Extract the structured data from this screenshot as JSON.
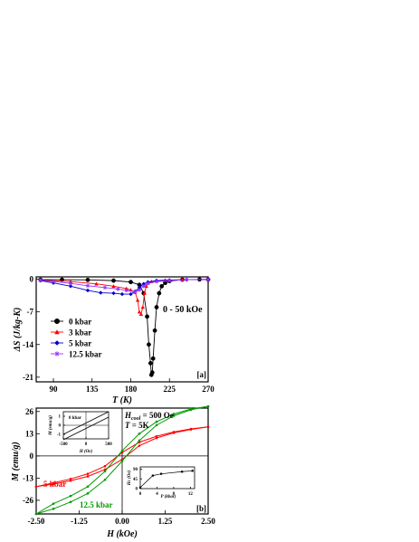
{
  "panel_a": {
    "ylabel": "ΔS (J/kg-K)",
    "xlabel": "T (K)",
    "field_label": "0 - 50 kOe",
    "panel_tag": "[a]",
    "legend": [
      {
        "label": "0 kbar",
        "color": "#000000",
        "marker": "circle"
      },
      {
        "label": "3 kbar",
        "color": "#ff0000",
        "marker": "triangle"
      },
      {
        "label": "5 kbar",
        "color": "#0000cc",
        "marker": "diamond"
      },
      {
        "label": "12.5 kbar",
        "color": "#9933ff",
        "marker": "star"
      }
    ]
  },
  "panel_b": {
    "ylabel": "M (emu/g)",
    "xlabel": "H (kOe)",
    "hcool_label": "H",
    "hcool_sub": "cool",
    "hcool_value": " = 500 Oe",
    "temp_label": "T",
    "temp_value": " = 5K",
    "panel_tag": "[b]",
    "label_5kbar": "5 kbar",
    "label_125kbar": "12.5 kbar",
    "inset_left": {
      "text": "0 kbar",
      "xlabel": "H (Oe)",
      "ylabel": "M (emu/g)"
    },
    "inset_right": {
      "xlabel": "P (kbar)",
      "ylabel": "Hc (Oe)"
    }
  },
  "chart_data": [
    {
      "type": "line",
      "xlabel": "T (K)",
      "ylabel": "ΔS (J/kg-K)",
      "xlim": [
        70,
        270
      ],
      "ylim": [
        -22,
        0.5
      ],
      "xticks": [
        90,
        135,
        180,
        225,
        270
      ],
      "yticks": [
        0,
        -7,
        -14,
        -21
      ],
      "series": [
        {
          "name": "0 kbar",
          "color": "#000000",
          "x": [
            75,
            100,
            130,
            160,
            180,
            190,
            195,
            199,
            201,
            203,
            204,
            205,
            206,
            208,
            210,
            213,
            216,
            220,
            225,
            240,
            260,
            270
          ],
          "y": [
            -0.1,
            -0.1,
            -0.15,
            -0.3,
            -0.6,
            -1.2,
            -3,
            -8,
            -14,
            -18,
            -20.5,
            -20,
            -17,
            -11,
            -6,
            -3,
            -1.5,
            -0.8,
            -0.4,
            -0.1,
            -0.05,
            -0.05
          ]
        },
        {
          "name": "3 kbar",
          "color": "#ff0000",
          "x": [
            75,
            110,
            140,
            160,
            175,
            180,
            185,
            188,
            190,
            192,
            194,
            196,
            198,
            200,
            204,
            210,
            220,
            240,
            270
          ],
          "y": [
            -0.2,
            -0.5,
            -1.0,
            -1.5,
            -2.0,
            -2.3,
            -2.8,
            -4.5,
            -7.0,
            -7.5,
            -6.0,
            -3.0,
            -1.5,
            -0.8,
            -0.5,
            -0.3,
            -0.2,
            -0.1,
            -0.05
          ]
        },
        {
          "name": "5 kbar",
          "color": "#0000cc",
          "x": [
            75,
            90,
            110,
            130,
            145,
            160,
            170,
            180,
            185,
            190,
            195,
            200,
            210,
            225,
            245,
            270
          ],
          "y": [
            -0.3,
            -0.8,
            -1.5,
            -2.4,
            -2.9,
            -3.0,
            -3.2,
            -3.2,
            -2.6,
            -1.8,
            -1.0,
            -0.6,
            -0.3,
            -0.2,
            -0.1,
            -0.05
          ]
        },
        {
          "name": "12.5 kbar",
          "color": "#9933ff",
          "x": [
            75,
            90,
            110,
            130,
            150,
            165,
            175,
            185,
            190,
            195,
            200,
            210,
            225,
            245,
            270
          ],
          "y": [
            -0.2,
            -0.5,
            -0.9,
            -1.4,
            -1.8,
            -2.1,
            -2.4,
            -2.7,
            -2.3,
            -1.5,
            -0.9,
            -0.5,
            -0.3,
            -0.1,
            -0.05
          ]
        }
      ]
    },
    {
      "type": "line",
      "xlabel": "H (kOe)",
      "ylabel": "M (emu/g)",
      "xlim": [
        -2.5,
        2.5
      ],
      "ylim": [
        -34,
        28
      ],
      "xticks": [
        -2.5,
        -1.25,
        0.0,
        1.25,
        2.5
      ],
      "xtick_labels": [
        "-2.50",
        "-1.25",
        "0.00",
        "1.25",
        "2.50"
      ],
      "yticks": [
        26,
        13,
        0,
        -13,
        -26
      ],
      "series": [
        {
          "name": "5 kbar",
          "color": "#ff0000",
          "x": [
            -2.5,
            -2.0,
            -1.5,
            -1.0,
            -0.5,
            0.0,
            0.5,
            1.0,
            1.5,
            2.0,
            2.5
          ],
          "y": [
            -18,
            -16.5,
            -14.5,
            -12,
            -8,
            -2,
            6,
            10.5,
            13.5,
            15.5,
            17
          ]
        },
        {
          "name": "5 kbar return",
          "color": "#ff0000",
          "x": [
            2.5,
            2.0,
            1.5,
            1.0,
            0.5,
            0.0,
            -0.5,
            -1.0,
            -1.5,
            -2.0,
            -2.5
          ],
          "y": [
            17,
            15.8,
            14,
            11.5,
            8,
            2,
            -6,
            -10.5,
            -13.5,
            -15.8,
            -18
          ]
        },
        {
          "name": "12.5 kbar",
          "color": "#009900",
          "x": [
            -2.5,
            -2.0,
            -1.5,
            -1.0,
            -0.5,
            0.0,
            0.5,
            1.0,
            1.5,
            2.0,
            2.5
          ],
          "y": [
            -34,
            -31,
            -27,
            -22,
            -14,
            -3,
            9,
            18,
            23.5,
            27,
            29
          ]
        },
        {
          "name": "12.5 kbar return",
          "color": "#009900",
          "x": [
            2.5,
            2.0,
            1.5,
            1.0,
            0.5,
            0.0,
            -0.5,
            -1.0,
            -1.5,
            -2.0,
            -2.5
          ],
          "y": [
            29,
            27.5,
            24.5,
            20,
            13,
            3,
            -9,
            -18,
            -23.5,
            -28,
            -34
          ]
        }
      ]
    },
    {
      "type": "line",
      "xlabel": "H (Oe)",
      "ylabel": "M (emu/g)",
      "xlim": [
        -500,
        500
      ],
      "ylim": [
        -1.5,
        1.5
      ],
      "xticks": [
        -500,
        0,
        500
      ],
      "yticks": [
        1,
        0,
        -1
      ],
      "series": [
        {
          "name": "0 kbar up",
          "color": "#000000",
          "x": [
            -500,
            500
          ],
          "y": [
            -1.0,
            1.5
          ]
        },
        {
          "name": "0 kbar down",
          "color": "#000000",
          "x": [
            -500,
            500
          ],
          "y": [
            -1.6,
            0.9
          ]
        }
      ]
    },
    {
      "type": "line",
      "xlabel": "P (kbar)",
      "ylabel": "Hc (Oe)",
      "xlim": [
        0,
        13
      ],
      "ylim": [
        0,
        100
      ],
      "xticks": [
        0,
        4,
        8,
        12
      ],
      "yticks": [
        0,
        45,
        90
      ],
      "series": [
        {
          "name": "Hc",
          "color": "#000000",
          "x": [
            0,
            3,
            5,
            10,
            12.5
          ],
          "y": [
            5,
            60,
            68,
            78,
            82
          ]
        }
      ]
    }
  ]
}
